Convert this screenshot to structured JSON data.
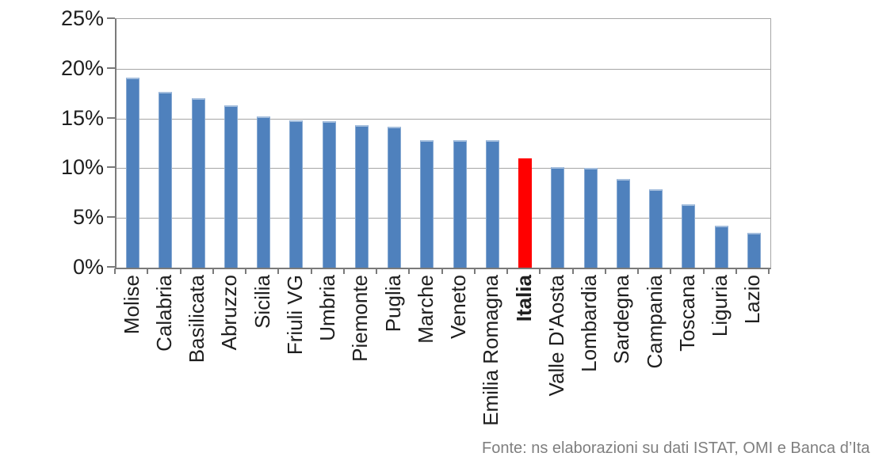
{
  "chart_data": {
    "type": "bar",
    "title": "",
    "xlabel": "",
    "ylabel": "",
    "categories": [
      "Molise",
      "Calabria",
      "Basilicata",
      "Abruzzo",
      "Sicilia",
      "Friuli VG",
      "Umbria",
      "Piemonte",
      "Puglia",
      "Marche",
      "Veneto",
      "Emilia Romagna",
      "Italia",
      "Valle D'Aosta",
      "Lombardia",
      "Sardegna",
      "Campania",
      "Toscana",
      "Liguria",
      "Lazio"
    ],
    "values": [
      19.1,
      17.7,
      17.0,
      16.3,
      15.2,
      14.8,
      14.7,
      14.3,
      14.2,
      12.8,
      12.8,
      12.8,
      11.0,
      10.1,
      10.0,
      8.9,
      7.9,
      6.4,
      4.2,
      3.5
    ],
    "unit": "%",
    "ylim": [
      0,
      25
    ],
    "ytick_step": 5,
    "ytick_labels": [
      "0%",
      "5%",
      "10%",
      "15%",
      "20%",
      "25%"
    ],
    "grid": true,
    "legend": false,
    "x_label_rotation_deg": 90,
    "highlight_index": 12,
    "highlight_category": "Italia",
    "bar_color": "#4f81bd",
    "highlight_color": "#ff0000"
  },
  "footer": {
    "source_text": "Fonte: ns elaborazioni su dati ISTAT, OMI e Banca d’Ita"
  },
  "colors": {
    "background": "#ffffff",
    "gridline": "#a6a6a6",
    "axis": "#7a7a7a",
    "axis_text": "#1f1f1f",
    "source_text": "#7f7f7f"
  }
}
